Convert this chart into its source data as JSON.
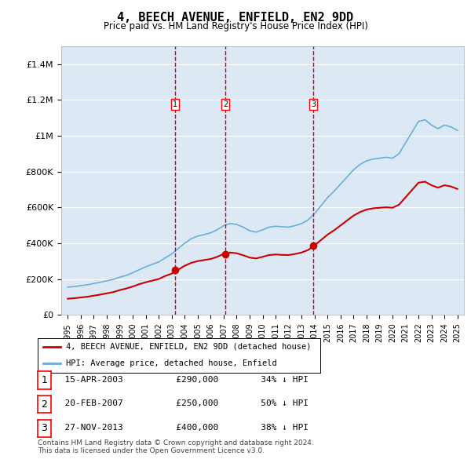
{
  "title": "4, BEECH AVENUE, ENFIELD, EN2 9DD",
  "subtitle": "Price paid vs. HM Land Registry's House Price Index (HPI)",
  "legend_line1": "4, BEECH AVENUE, ENFIELD, EN2 9DD (detached house)",
  "legend_line2": "HPI: Average price, detached house, Enfield",
  "footnote1": "Contains HM Land Registry data © Crown copyright and database right 2024.",
  "footnote2": "This data is licensed under the Open Government Licence v3.0.",
  "transactions": [
    {
      "label": "1",
      "date": "15-APR-2003",
      "price": 290000,
      "hpi_rel": "34% ↓ HPI",
      "year": 2003.29
    },
    {
      "label": "2",
      "date": "20-FEB-2007",
      "price": 250000,
      "hpi_rel": "50% ↓ HPI",
      "year": 2007.13
    },
    {
      "label": "3",
      "date": "27-NOV-2013",
      "price": 400000,
      "hpi_rel": "38% ↓ HPI",
      "year": 2013.91
    }
  ],
  "hpi_line_color": "#6baed6",
  "price_line_color": "#cc0000",
  "vline_color": "#cc0000",
  "background_color": "#dce9f5",
  "ylim": [
    0,
    1500000
  ],
  "xlim_start": 1994.5,
  "xlim_end": 2025.5,
  "hpi_years": [
    1995,
    1995.5,
    1996,
    1996.5,
    1997,
    1997.5,
    1998,
    1998.5,
    1999,
    1999.5,
    2000,
    2000.5,
    2001,
    2001.5,
    2002,
    2002.5,
    2003,
    2003.5,
    2004,
    2004.5,
    2005,
    2005.5,
    2006,
    2006.5,
    2007,
    2007.5,
    2008,
    2008.5,
    2009,
    2009.5,
    2010,
    2010.5,
    2011,
    2011.5,
    2012,
    2012.5,
    2013,
    2013.5,
    2014,
    2014.5,
    2015,
    2015.5,
    2016,
    2016.5,
    2017,
    2017.5,
    2018,
    2018.5,
    2019,
    2019.5,
    2020,
    2020.5,
    2021,
    2021.5,
    2022,
    2022.5,
    2023,
    2023.5,
    2024,
    2024.5,
    2025
  ],
  "hpi_values": [
    155000,
    158000,
    163000,
    168000,
    175000,
    182000,
    190000,
    198000,
    210000,
    220000,
    235000,
    252000,
    268000,
    282000,
    295000,
    318000,
    340000,
    370000,
    400000,
    425000,
    440000,
    448000,
    458000,
    475000,
    498000,
    510000,
    505000,
    490000,
    470000,
    462000,
    475000,
    490000,
    495000,
    492000,
    490000,
    498000,
    510000,
    530000,
    565000,
    610000,
    655000,
    690000,
    730000,
    770000,
    810000,
    840000,
    860000,
    870000,
    875000,
    880000,
    875000,
    900000,
    960000,
    1020000,
    1080000,
    1090000,
    1060000,
    1040000,
    1060000,
    1050000,
    1030000
  ],
  "price_years": [
    1995,
    1995.5,
    1996,
    1996.5,
    1997,
    1997.5,
    1998,
    1998.5,
    1999,
    1999.5,
    2000,
    2000.5,
    2001,
    2001.5,
    2002,
    2002.5,
    2003,
    2003.5,
    2004,
    2004.5,
    2005,
    2005.5,
    2006,
    2006.5,
    2007,
    2007.5,
    2008,
    2008.5,
    2009,
    2009.5,
    2010,
    2010.5,
    2011,
    2011.5,
    2012,
    2012.5,
    2013,
    2013.5,
    2014,
    2014.5,
    2015,
    2015.5,
    2016,
    2016.5,
    2017,
    2017.5,
    2018,
    2018.5,
    2019,
    2019.5,
    2020,
    2020.5,
    2021,
    2021.5,
    2022,
    2022.5,
    2023,
    2023.5,
    2024,
    2024.5,
    2025
  ],
  "price_values": [
    90000,
    93000,
    97000,
    101000,
    107000,
    113000,
    120000,
    127000,
    138000,
    147000,
    158000,
    171000,
    182000,
    191000,
    200000,
    217000,
    230000,
    252000,
    274000,
    290000,
    300000,
    306000,
    312000,
    324000,
    340000,
    348000,
    344000,
    333000,
    320000,
    315000,
    324000,
    334000,
    337000,
    335000,
    334000,
    340000,
    348000,
    362000,
    388000,
    418000,
    448000,
    472000,
    499000,
    527000,
    554000,
    574000,
    588000,
    595000,
    598000,
    601000,
    598000,
    615000,
    656000,
    697000,
    738000,
    744000,
    724000,
    710000,
    724000,
    717000,
    703000
  ]
}
